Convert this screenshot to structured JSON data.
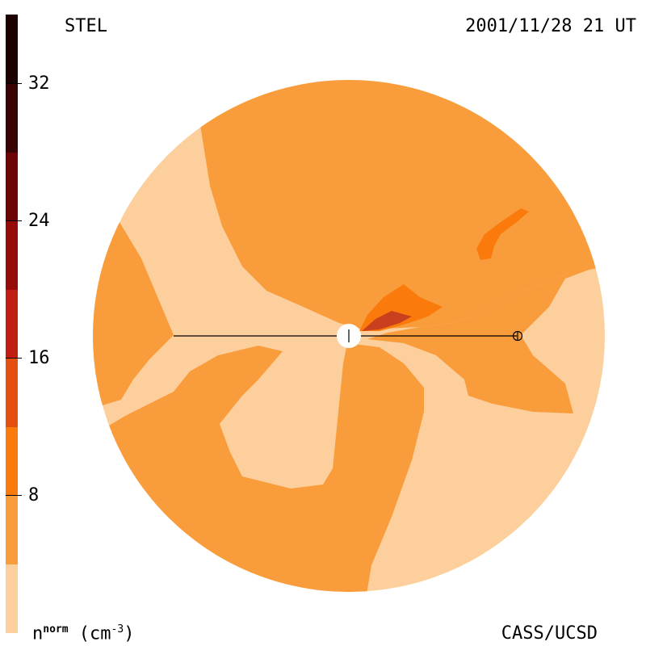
{
  "header": {
    "instrument": "STEL",
    "timestamp": "2001/11/28 21 UT"
  },
  "footer": {
    "credit": "CASS/UCSD"
  },
  "colorbar": {
    "unit_base": "n",
    "unit_sup": "norm",
    "unit_suffix": " (cm",
    "unit_exp": "-3",
    "unit_close": ")",
    "ticks": [
      "8",
      "16",
      "24",
      "32"
    ],
    "colors": [
      "#fccf9c",
      "#f99d3c",
      "#fb7a0c",
      "#e4500f",
      "#c01e10",
      "#970a0a",
      "#6b0505",
      "#3a0303",
      "#1c0101"
    ]
  },
  "map": {
    "colors": {
      "background": "#fccf9c",
      "level1": "#f99d3c",
      "level2": "#fb7a0c",
      "level3": "#c8401e"
    },
    "sun_icon": "sun-icon",
    "earth_icon": "earth-icon"
  }
}
